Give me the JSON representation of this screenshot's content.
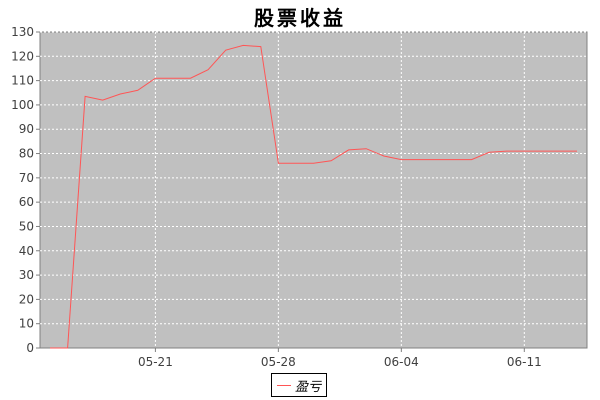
{
  "chart_data": {
    "type": "line",
    "title": "股票收益",
    "xlabel": "",
    "ylabel": "",
    "ylim": [
      0,
      130
    ],
    "yticks": [
      0,
      10,
      20,
      30,
      40,
      50,
      60,
      70,
      80,
      90,
      100,
      110,
      120,
      130
    ],
    "xticks": [
      "05-21",
      "05-28",
      "06-04",
      "06-11"
    ],
    "grid": true,
    "legend_position": "bottom",
    "series": [
      {
        "name": "盈亏",
        "color": "#ff5555",
        "x": [
          "05-15",
          "05-16",
          "05-17",
          "05-18",
          "05-19",
          "05-20",
          "05-21",
          "05-22",
          "05-23",
          "05-24",
          "05-25",
          "05-26",
          "05-27",
          "05-28",
          "05-29",
          "05-30",
          "05-31",
          "06-01",
          "06-02",
          "06-03",
          "06-04",
          "06-05",
          "06-06",
          "06-07",
          "06-08",
          "06-09",
          "06-10",
          "06-11",
          "06-12",
          "06-13",
          "06-14"
        ],
        "values": [
          0,
          0,
          103.5,
          102,
          104.5,
          106,
          111,
          111,
          111,
          114.5,
          122.5,
          124.5,
          124,
          76,
          76,
          76,
          77,
          81.5,
          82,
          79,
          77.5,
          77.5,
          77.5,
          77.5,
          77.5,
          80.5,
          81,
          81,
          81,
          81,
          81
        ]
      }
    ]
  }
}
